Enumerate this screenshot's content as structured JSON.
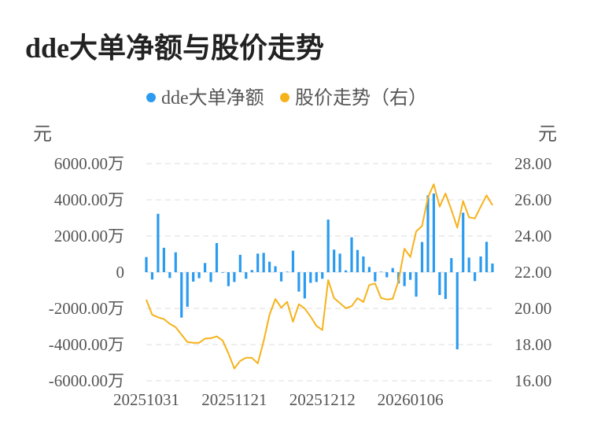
{
  "title": "dde大单净额与股价走势",
  "chart_data": {
    "type": "bar+line",
    "title": "dde大单净额与股价走势",
    "legend": [
      "dde大单净额",
      "股价走势（右）"
    ],
    "legend_position": "top-center",
    "left_unit": "元",
    "right_unit": "元",
    "left_ticks": [
      "6000.00万",
      "4000.00万",
      "2000.00万",
      "0",
      "-2000.00万",
      "-4000.00万",
      "-6000.00万"
    ],
    "right_ticks": [
      "28.00",
      "26.00",
      "24.00",
      "22.00",
      "20.00",
      "18.00",
      "16.00"
    ],
    "ylim_left": [
      -6000,
      6000
    ],
    "ylim_right": [
      16,
      28
    ],
    "x_tick_labels": [
      {
        "index": 0,
        "label": "20251031"
      },
      {
        "index": 15,
        "label": "20251121"
      },
      {
        "index": 30,
        "label": "20251212"
      },
      {
        "index": 45,
        "label": "20260106"
      }
    ],
    "grid": true,
    "colors": {
      "bar": "#2b9bf0",
      "line": "#f6b21b"
    },
    "series": [
      {
        "name": "dde大单净额",
        "unit": "万元",
        "values": [
          840,
          -405,
          3230,
          1350,
          -320,
          1100,
          -2510,
          -1910,
          -520,
          -330,
          510,
          -540,
          1610,
          -30,
          -770,
          -540,
          960,
          -360,
          120,
          1030,
          1070,
          580,
          330,
          -510,
          30,
          1190,
          -1070,
          -1450,
          -590,
          -540,
          -360,
          2910,
          1250,
          1030,
          100,
          1930,
          1230,
          870,
          290,
          -510,
          30,
          -280,
          230,
          -620,
          -770,
          -420,
          -1350,
          1670,
          4250,
          4350,
          -1260,
          -1480,
          780,
          -4260,
          3290,
          810,
          -490,
          870,
          1680,
          480
        ]
      },
      {
        "name": "股价走势（右）",
        "values": [
          20.48,
          19.65,
          19.51,
          19.41,
          19.15,
          18.96,
          18.55,
          18.14,
          18.1,
          18.1,
          18.33,
          18.35,
          18.45,
          18.23,
          17.51,
          16.68,
          17.1,
          17.27,
          17.27,
          16.96,
          18.2,
          19.65,
          20.52,
          20.04,
          20.36,
          19.26,
          20.23,
          19.99,
          19.55,
          19.03,
          18.81,
          21.57,
          20.57,
          20.29,
          20.01,
          20.12,
          20.57,
          20.35,
          21.29,
          21.38,
          20.58,
          20.49,
          20.53,
          21.54,
          23.3,
          22.84,
          24.26,
          24.55,
          26.14,
          26.86,
          25.62,
          26.35,
          25.45,
          24.46,
          25.93,
          25.04,
          24.97,
          25.62,
          26.25,
          25.7
        ]
      }
    ]
  }
}
